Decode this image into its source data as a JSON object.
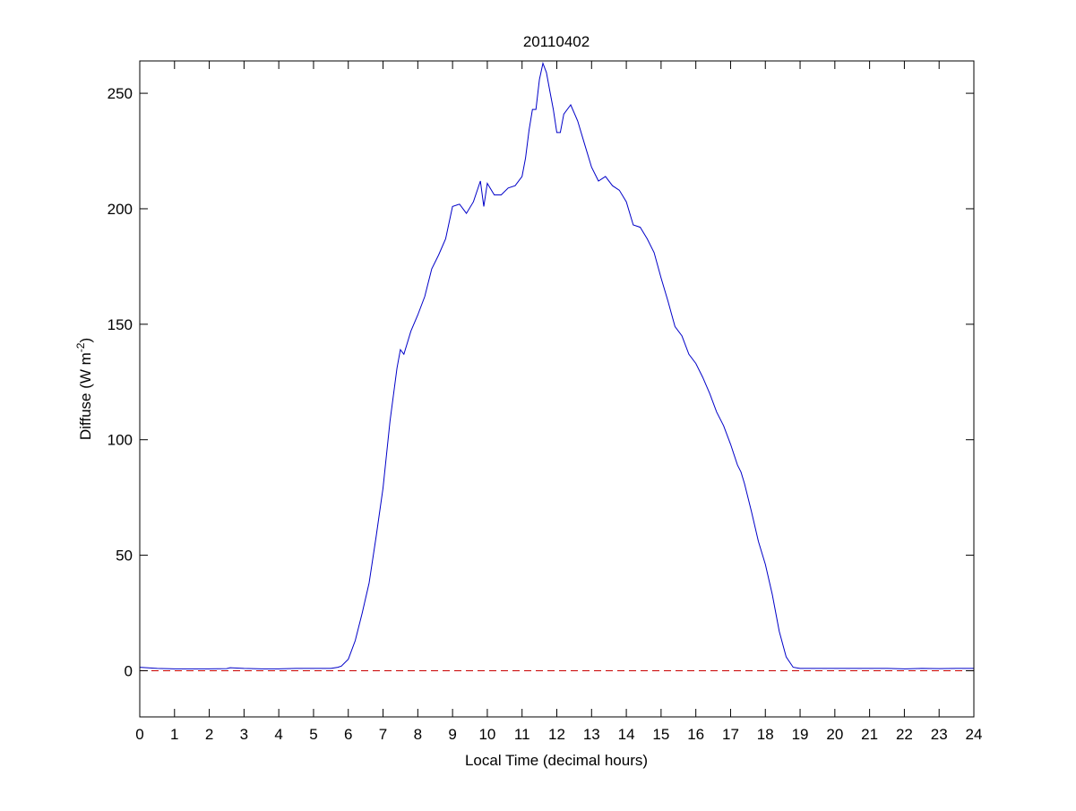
{
  "chart_data": {
    "type": "line",
    "title": "20110402",
    "xlabel": "Local Time (decimal hours)",
    "ylabel": "Diffuse (W m^-2)",
    "ylabel_main": "Diffuse (W m",
    "ylabel_sup": "-2",
    "ylabel_close": ")",
    "xlim": [
      0,
      24
    ],
    "ylim": [
      -20,
      264
    ],
    "xticks": [
      0,
      1,
      2,
      3,
      4,
      5,
      6,
      7,
      8,
      9,
      10,
      11,
      12,
      13,
      14,
      15,
      16,
      17,
      18,
      19,
      20,
      21,
      22,
      23,
      24
    ],
    "yticks": [
      0,
      50,
      100,
      150,
      200,
      250
    ],
    "grid": false,
    "series": [
      {
        "color": "#0000c8",
        "style": "solid",
        "x": [
          0,
          0.5,
          1,
          1.5,
          2,
          2.5,
          2.6,
          3,
          3.5,
          4,
          4.5,
          5,
          5.5,
          5.7,
          5.8,
          6.0,
          6.2,
          6.4,
          6.6,
          6.8,
          7.0,
          7.2,
          7.4,
          7.5,
          7.6,
          7.7,
          7.8,
          8.0,
          8.2,
          8.3,
          8.4,
          8.6,
          8.8,
          9.0,
          9.2,
          9.4,
          9.6,
          9.8,
          9.9,
          10.0,
          10.2,
          10.4,
          10.6,
          10.8,
          11.0,
          11.1,
          11.2,
          11.3,
          11.4,
          11.5,
          11.6,
          11.7,
          11.8,
          11.9,
          12.0,
          12.1,
          12.2,
          12.4,
          12.6,
          12.8,
          13.0,
          13.2,
          13.4,
          13.6,
          13.8,
          14.0,
          14.2,
          14.4,
          14.6,
          14.8,
          15.0,
          15.2,
          15.4,
          15.6,
          15.8,
          16.0,
          16.2,
          16.4,
          16.6,
          16.8,
          17.0,
          17.2,
          17.3,
          17.4,
          17.6,
          17.8,
          18.0,
          18.2,
          18.4,
          18.6,
          18.8,
          19.0,
          19.5,
          20,
          20.5,
          21,
          21.5,
          22,
          22.5,
          23,
          23.5,
          24
        ],
        "y": [
          1.5,
          1,
          0.8,
          0.8,
          0.8,
          0.9,
          1.3,
          1,
          0.8,
          0.8,
          1,
          1,
          1,
          1.5,
          2,
          5,
          13,
          25,
          38,
          58,
          79,
          108,
          131,
          139,
          137,
          142,
          147,
          154,
          162,
          168,
          174,
          180,
          187,
          201,
          202,
          198,
          203,
          212,
          201,
          211,
          206,
          206,
          209,
          210,
          214,
          222,
          234,
          243,
          243,
          256,
          263,
          259,
          251,
          243,
          233,
          233,
          241,
          245,
          238,
          228,
          218,
          212,
          214,
          210,
          208,
          203,
          193,
          192,
          187,
          181,
          170,
          160,
          149,
          145,
          137,
          133,
          127,
          120,
          112,
          106,
          98,
          89,
          86,
          81,
          69,
          56,
          46,
          33,
          17,
          6,
          1.5,
          1,
          1,
          1,
          1,
          1,
          1,
          0.8,
          1,
          0.9,
          1,
          1
        ]
      },
      {
        "color": "#c80000",
        "style": "dashed",
        "x": [
          0,
          24
        ],
        "y": [
          0,
          0
        ]
      }
    ]
  }
}
